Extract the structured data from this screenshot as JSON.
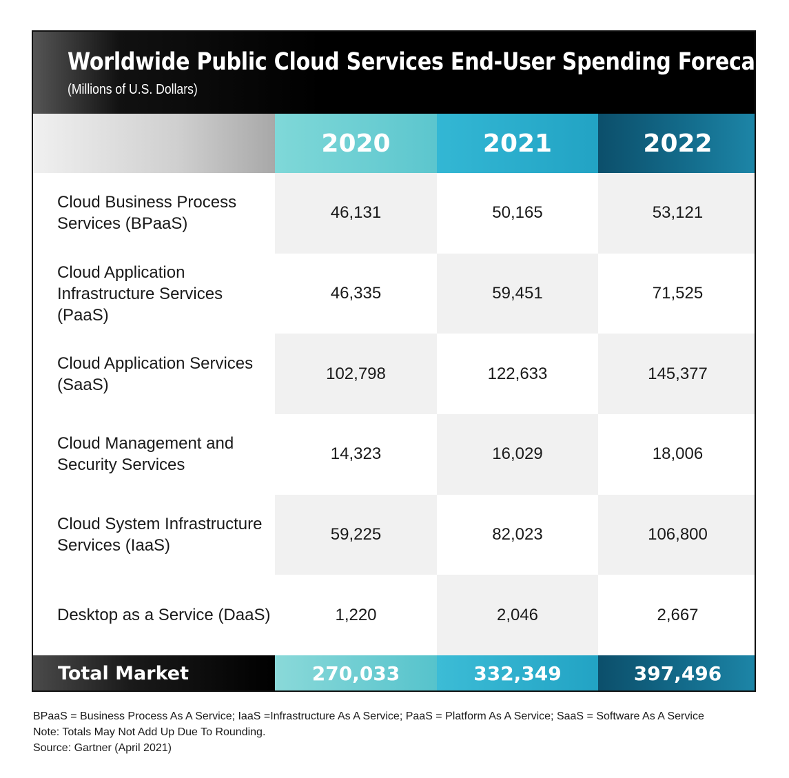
{
  "chart_data": {
    "type": "table",
    "title": "Worldwide Public Cloud Services End-User Spending Forecast",
    "subtitle": "(Millions of U.S. Dollars)",
    "columns": [
      "2020",
      "2021",
      "2022"
    ],
    "rows": [
      {
        "label": "Cloud Business Process Services (BPaaS)",
        "values": [
          "46,131",
          "50,165",
          "53,121"
        ]
      },
      {
        "label": "Cloud Application Infrastructure Services (PaaS)",
        "values": [
          "46,335",
          "59,451",
          "71,525"
        ]
      },
      {
        "label": "Cloud Application Services (SaaS)",
        "values": [
          "102,798",
          "122,633",
          "145,377"
        ]
      },
      {
        "label": "Cloud Management and Security Services",
        "values": [
          "14,323",
          "16,029",
          "18,006"
        ]
      },
      {
        "label": "Cloud System Infrastructure Services (IaaS)",
        "values": [
          "59,225",
          "82,023",
          "106,800"
        ]
      },
      {
        "label": "Desktop as a Service (DaaS)",
        "values": [
          "1,220",
          "2,046",
          "2,667"
        ]
      }
    ],
    "total": {
      "label": "Total Market",
      "values": [
        "270,033",
        "332,349",
        "397,496"
      ]
    }
  },
  "footnotes": {
    "abbreviations": "BPaaS = Business Process As A Service; IaaS =Infrastructure As A Service; PaaS = Platform As A Service; SaaS = Software As A Service",
    "note": "Note: Totals May Not Add Up Due To Rounding.",
    "source": "Source: Gartner (April 2021)"
  }
}
